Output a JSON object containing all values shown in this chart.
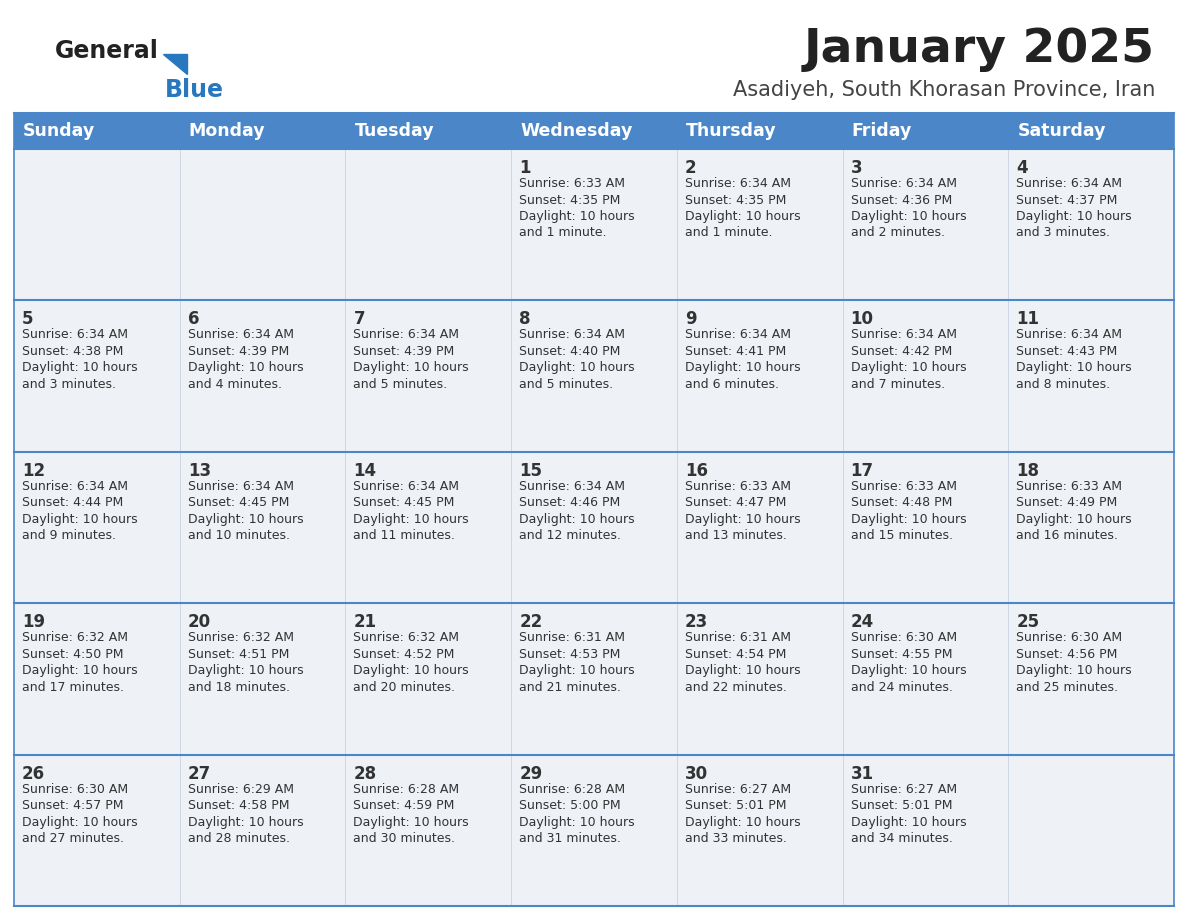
{
  "title": "January 2025",
  "subtitle": "Asadiyeh, South Khorasan Province, Iran",
  "header_color": "#4a86c8",
  "header_text_color": "#ffffff",
  "cell_bg_color": "#eef2f7",
  "title_color": "#222222",
  "subtitle_color": "#444444",
  "logo_general_color": "#222222",
  "logo_blue_color": "#2878c0",
  "divider_color": "#4a86c8",
  "text_color": "#333333",
  "day_headers": [
    "Sunday",
    "Monday",
    "Tuesday",
    "Wednesday",
    "Thursday",
    "Friday",
    "Saturday"
  ],
  "calendar_data": [
    [
      {
        "day": null,
        "sunrise": null,
        "sunset": null,
        "daylight": null
      },
      {
        "day": null,
        "sunrise": null,
        "sunset": null,
        "daylight": null
      },
      {
        "day": null,
        "sunrise": null,
        "sunset": null,
        "daylight": null
      },
      {
        "day": 1,
        "sunrise": "6:33 AM",
        "sunset": "4:35 PM",
        "daylight": "10 hours\nand 1 minute."
      },
      {
        "day": 2,
        "sunrise": "6:34 AM",
        "sunset": "4:35 PM",
        "daylight": "10 hours\nand 1 minute."
      },
      {
        "day": 3,
        "sunrise": "6:34 AM",
        "sunset": "4:36 PM",
        "daylight": "10 hours\nand 2 minutes."
      },
      {
        "day": 4,
        "sunrise": "6:34 AM",
        "sunset": "4:37 PM",
        "daylight": "10 hours\nand 3 minutes."
      }
    ],
    [
      {
        "day": 5,
        "sunrise": "6:34 AM",
        "sunset": "4:38 PM",
        "daylight": "10 hours\nand 3 minutes."
      },
      {
        "day": 6,
        "sunrise": "6:34 AM",
        "sunset": "4:39 PM",
        "daylight": "10 hours\nand 4 minutes."
      },
      {
        "day": 7,
        "sunrise": "6:34 AM",
        "sunset": "4:39 PM",
        "daylight": "10 hours\nand 5 minutes."
      },
      {
        "day": 8,
        "sunrise": "6:34 AM",
        "sunset": "4:40 PM",
        "daylight": "10 hours\nand 5 minutes."
      },
      {
        "day": 9,
        "sunrise": "6:34 AM",
        "sunset": "4:41 PM",
        "daylight": "10 hours\nand 6 minutes."
      },
      {
        "day": 10,
        "sunrise": "6:34 AM",
        "sunset": "4:42 PM",
        "daylight": "10 hours\nand 7 minutes."
      },
      {
        "day": 11,
        "sunrise": "6:34 AM",
        "sunset": "4:43 PM",
        "daylight": "10 hours\nand 8 minutes."
      }
    ],
    [
      {
        "day": 12,
        "sunrise": "6:34 AM",
        "sunset": "4:44 PM",
        "daylight": "10 hours\nand 9 minutes."
      },
      {
        "day": 13,
        "sunrise": "6:34 AM",
        "sunset": "4:45 PM",
        "daylight": "10 hours\nand 10 minutes."
      },
      {
        "day": 14,
        "sunrise": "6:34 AM",
        "sunset": "4:45 PM",
        "daylight": "10 hours\nand 11 minutes."
      },
      {
        "day": 15,
        "sunrise": "6:34 AM",
        "sunset": "4:46 PM",
        "daylight": "10 hours\nand 12 minutes."
      },
      {
        "day": 16,
        "sunrise": "6:33 AM",
        "sunset": "4:47 PM",
        "daylight": "10 hours\nand 13 minutes."
      },
      {
        "day": 17,
        "sunrise": "6:33 AM",
        "sunset": "4:48 PM",
        "daylight": "10 hours\nand 15 minutes."
      },
      {
        "day": 18,
        "sunrise": "6:33 AM",
        "sunset": "4:49 PM",
        "daylight": "10 hours\nand 16 minutes."
      }
    ],
    [
      {
        "day": 19,
        "sunrise": "6:32 AM",
        "sunset": "4:50 PM",
        "daylight": "10 hours\nand 17 minutes."
      },
      {
        "day": 20,
        "sunrise": "6:32 AM",
        "sunset": "4:51 PM",
        "daylight": "10 hours\nand 18 minutes."
      },
      {
        "day": 21,
        "sunrise": "6:32 AM",
        "sunset": "4:52 PM",
        "daylight": "10 hours\nand 20 minutes."
      },
      {
        "day": 22,
        "sunrise": "6:31 AM",
        "sunset": "4:53 PM",
        "daylight": "10 hours\nand 21 minutes."
      },
      {
        "day": 23,
        "sunrise": "6:31 AM",
        "sunset": "4:54 PM",
        "daylight": "10 hours\nand 22 minutes."
      },
      {
        "day": 24,
        "sunrise": "6:30 AM",
        "sunset": "4:55 PM",
        "daylight": "10 hours\nand 24 minutes."
      },
      {
        "day": 25,
        "sunrise": "6:30 AM",
        "sunset": "4:56 PM",
        "daylight": "10 hours\nand 25 minutes."
      }
    ],
    [
      {
        "day": 26,
        "sunrise": "6:30 AM",
        "sunset": "4:57 PM",
        "daylight": "10 hours\nand 27 minutes."
      },
      {
        "day": 27,
        "sunrise": "6:29 AM",
        "sunset": "4:58 PM",
        "daylight": "10 hours\nand 28 minutes."
      },
      {
        "day": 28,
        "sunrise": "6:28 AM",
        "sunset": "4:59 PM",
        "daylight": "10 hours\nand 30 minutes."
      },
      {
        "day": 29,
        "sunrise": "6:28 AM",
        "sunset": "5:00 PM",
        "daylight": "10 hours\nand 31 minutes."
      },
      {
        "day": 30,
        "sunrise": "6:27 AM",
        "sunset": "5:01 PM",
        "daylight": "10 hours\nand 33 minutes."
      },
      {
        "day": 31,
        "sunrise": "6:27 AM",
        "sunset": "5:01 PM",
        "daylight": "10 hours\nand 34 minutes."
      },
      {
        "day": null,
        "sunrise": null,
        "sunset": null,
        "daylight": null
      }
    ]
  ]
}
